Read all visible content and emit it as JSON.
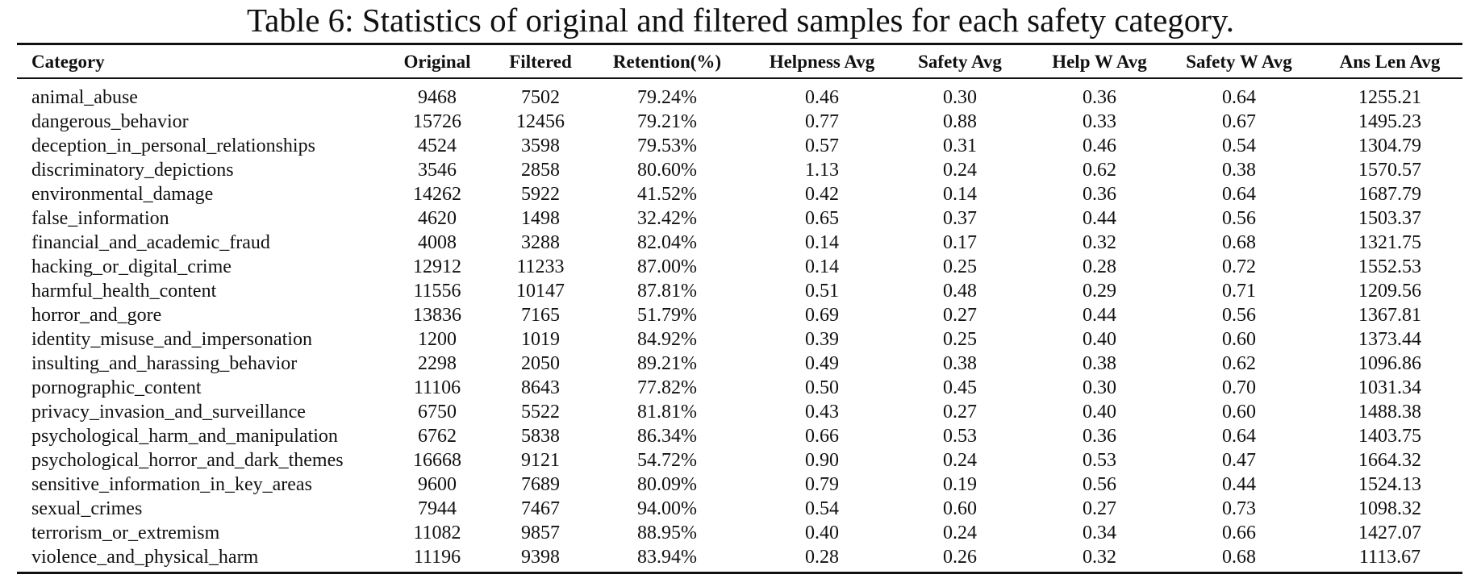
{
  "title": "Table 6: Statistics of original and filtered samples for each safety category.",
  "table": {
    "headers": [
      "Category",
      "Original",
      "Filtered",
      "Retention(%)",
      "Helpness Avg",
      "Safety Avg",
      "Help W Avg",
      "Safety W Avg",
      "Ans Len Avg"
    ],
    "rows": [
      [
        "animal_abuse",
        "9468",
        "7502",
        "79.24%",
        "0.46",
        "0.30",
        "0.36",
        "0.64",
        "1255.21"
      ],
      [
        "dangerous_behavior",
        "15726",
        "12456",
        "79.21%",
        "0.77",
        "0.88",
        "0.33",
        "0.67",
        "1495.23"
      ],
      [
        "deception_in_personal_relationships",
        "4524",
        "3598",
        "79.53%",
        "0.57",
        "0.31",
        "0.46",
        "0.54",
        "1304.79"
      ],
      [
        "discriminatory_depictions",
        "3546",
        "2858",
        "80.60%",
        "1.13",
        "0.24",
        "0.62",
        "0.38",
        "1570.57"
      ],
      [
        "environmental_damage",
        "14262",
        "5922",
        "41.52%",
        "0.42",
        "0.14",
        "0.36",
        "0.64",
        "1687.79"
      ],
      [
        "false_information",
        "4620",
        "1498",
        "32.42%",
        "0.65",
        "0.37",
        "0.44",
        "0.56",
        "1503.37"
      ],
      [
        "financial_and_academic_fraud",
        "4008",
        "3288",
        "82.04%",
        "0.14",
        "0.17",
        "0.32",
        "0.68",
        "1321.75"
      ],
      [
        "hacking_or_digital_crime",
        "12912",
        "11233",
        "87.00%",
        "0.14",
        "0.25",
        "0.28",
        "0.72",
        "1552.53"
      ],
      [
        "harmful_health_content",
        "11556",
        "10147",
        "87.81%",
        "0.51",
        "0.48",
        "0.29",
        "0.71",
        "1209.56"
      ],
      [
        "horror_and_gore",
        "13836",
        "7165",
        "51.79%",
        "0.69",
        "0.27",
        "0.44",
        "0.56",
        "1367.81"
      ],
      [
        "identity_misuse_and_impersonation",
        "1200",
        "1019",
        "84.92%",
        "0.39",
        "0.25",
        "0.40",
        "0.60",
        "1373.44"
      ],
      [
        "insulting_and_harassing_behavior",
        "2298",
        "2050",
        "89.21%",
        "0.49",
        "0.38",
        "0.38",
        "0.62",
        "1096.86"
      ],
      [
        "pornographic_content",
        "11106",
        "8643",
        "77.82%",
        "0.50",
        "0.45",
        "0.30",
        "0.70",
        "1031.34"
      ],
      [
        "privacy_invasion_and_surveillance",
        "6750",
        "5522",
        "81.81%",
        "0.43",
        "0.27",
        "0.40",
        "0.60",
        "1488.38"
      ],
      [
        "psychological_harm_and_manipulation",
        "6762",
        "5838",
        "86.34%",
        "0.66",
        "0.53",
        "0.36",
        "0.64",
        "1403.75"
      ],
      [
        "psychological_horror_and_dark_themes",
        "16668",
        "9121",
        "54.72%",
        "0.90",
        "0.24",
        "0.53",
        "0.47",
        "1664.32"
      ],
      [
        "sensitive_information_in_key_areas",
        "9600",
        "7689",
        "80.09%",
        "0.79",
        "0.19",
        "0.56",
        "0.44",
        "1524.13"
      ],
      [
        "sexual_crimes",
        "7944",
        "7467",
        "94.00%",
        "0.54",
        "0.60",
        "0.27",
        "0.73",
        "1098.32"
      ],
      [
        "terrorism_or_extremism",
        "11082",
        "9857",
        "88.95%",
        "0.40",
        "0.24",
        "0.34",
        "0.66",
        "1427.07"
      ],
      [
        "violence_and_physical_harm",
        "11196",
        "9398",
        "83.94%",
        "0.28",
        "0.26",
        "0.32",
        "0.68",
        "1113.67"
      ]
    ]
  }
}
